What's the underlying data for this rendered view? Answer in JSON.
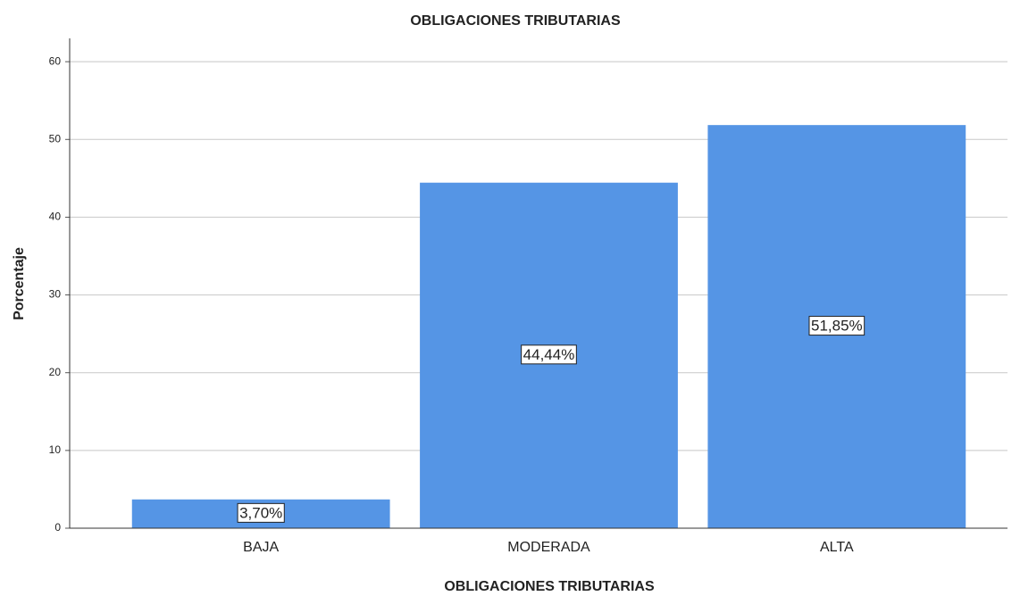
{
  "chart_data": {
    "type": "bar",
    "title": "OBLIGACIONES TRIBUTARIAS",
    "x_label": "OBLIGACIONES TRIBUTARIAS",
    "y_label": "Porcentaje",
    "categories": [
      "BAJA",
      "MODERADA",
      "ALTA"
    ],
    "values": [
      3.7,
      44.44,
      51.85
    ],
    "value_labels": [
      "3,70%",
      "44,44%",
      "51,85%"
    ],
    "color": "#5595e5",
    "ylim": [
      0,
      63
    ],
    "yticks": [
      0,
      10,
      20,
      30,
      40,
      50,
      60
    ],
    "grid": true
  }
}
